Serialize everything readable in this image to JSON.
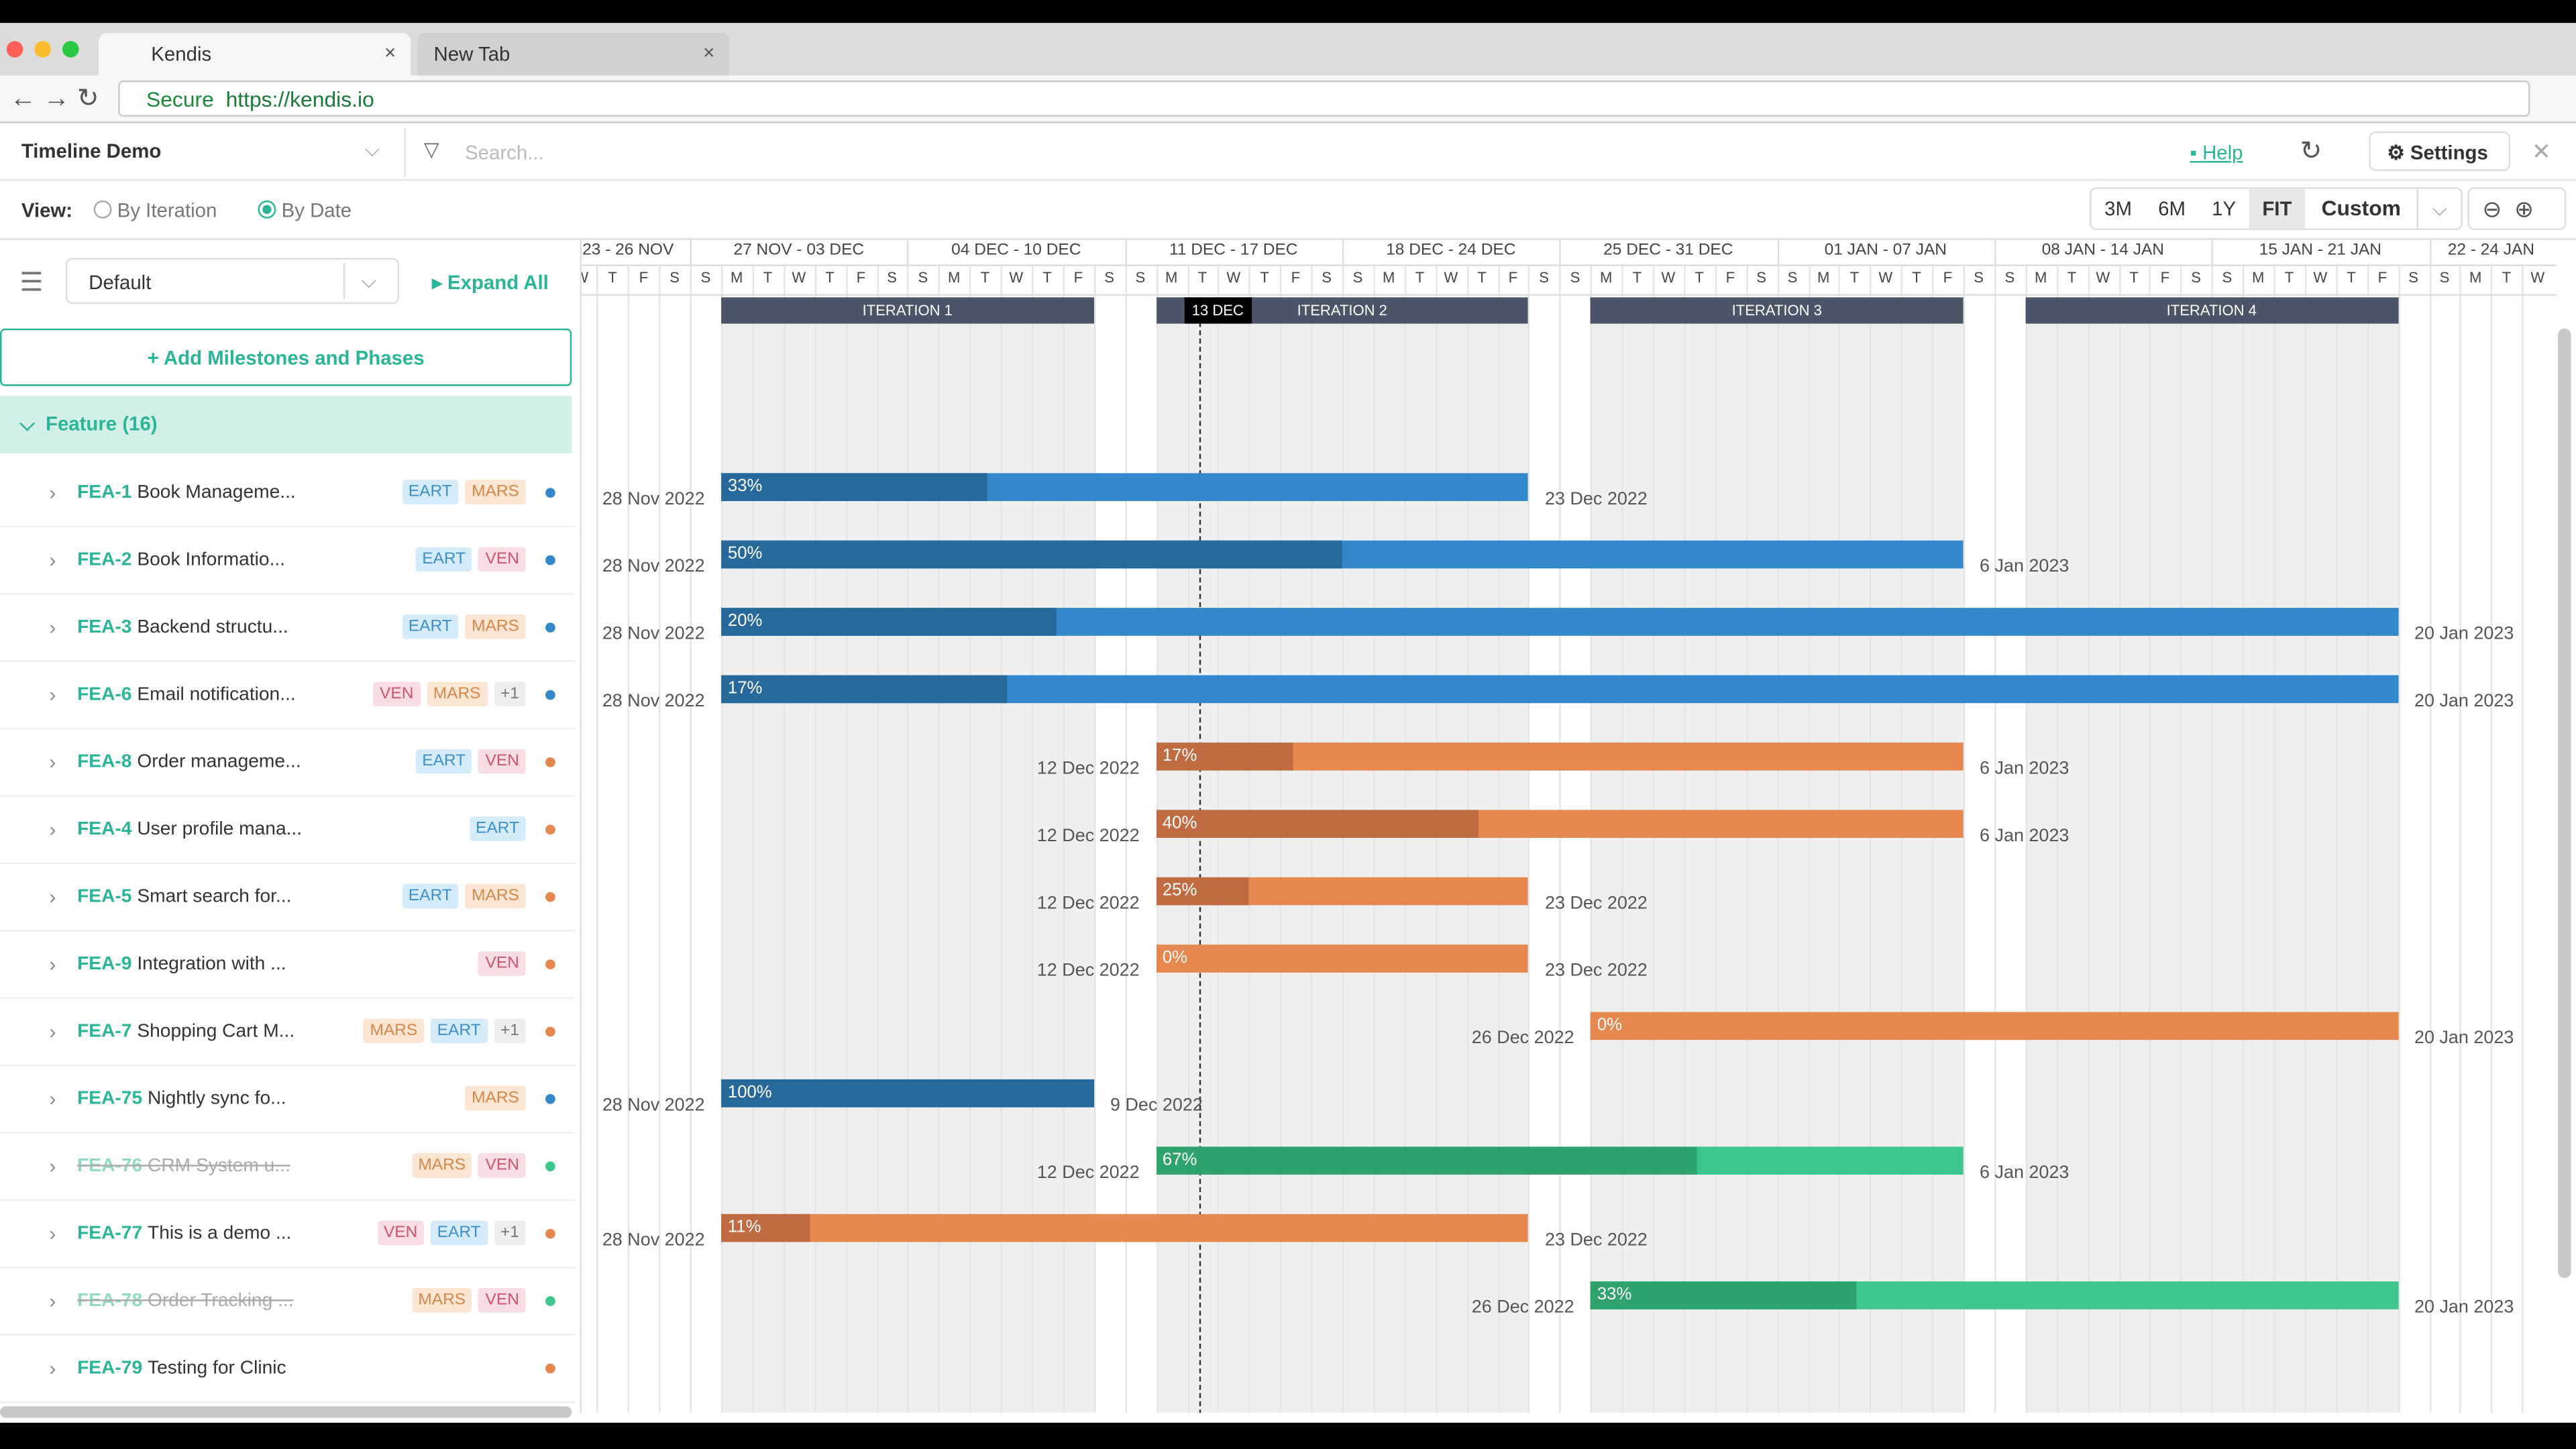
{
  "browser": {
    "tabs": [
      "Kendis",
      "New Tab"
    ],
    "secure": "Secure",
    "url": "https://kendis.io"
  },
  "header": {
    "board": "Timeline Demo",
    "search_placeholder": "Search...",
    "help": "Help",
    "settings": "Settings"
  },
  "view": {
    "label": "View:",
    "options": [
      "By Iteration",
      "By Date"
    ],
    "ranges": [
      "3M",
      "6M",
      "1Y",
      "FIT",
      "Custom"
    ]
  },
  "sidebar": {
    "preset": "Default",
    "expand": "Expand All",
    "add": "Add Milestones and Phases",
    "group": "Feature (16)"
  },
  "timeline": {
    "weeks": [
      "23 - 26 NOV",
      "27 NOV - 03 DEC",
      "04 DEC - 10 DEC",
      "11 DEC - 17 DEC",
      "18 DEC - 24 DEC",
      "25 DEC - 31 DEC",
      "01 JAN - 07 JAN",
      "08 JAN - 14 JAN",
      "15 JAN - 21 JAN",
      "22 - 24 JAN"
    ],
    "days": [
      "W",
      "T",
      "F",
      "S",
      "S",
      "M",
      "T",
      "W",
      "T",
      "F",
      "S",
      "S",
      "M",
      "T",
      "W",
      "T",
      "F",
      "S",
      "S",
      "M",
      "T",
      "W",
      "T",
      "F",
      "S",
      "S",
      "M",
      "T",
      "W",
      "T",
      "F",
      "S",
      "S",
      "M",
      "T",
      "W",
      "T",
      "F",
      "S",
      "S",
      "M",
      "T",
      "W",
      "T",
      "F",
      "S",
      "S",
      "M",
      "T",
      "W",
      "T",
      "F",
      "S",
      "S",
      "M",
      "T",
      "W",
      "T",
      "F",
      "S",
      "S",
      "M",
      "T",
      "W"
    ],
    "iterations": [
      "ITERATION 1",
      "ITERATION 2",
      "ITERATION 3",
      "ITERATION 4"
    ],
    "today": "13 DEC"
  },
  "rows": [
    {
      "id": "FEA-1",
      "name": "Book Manageme...",
      "tags": [
        "EART",
        "MARS"
      ],
      "start": "28 Nov 2022",
      "end": "23 Dec 2022",
      "progress": 33,
      "progress_label": "33%"
    },
    {
      "id": "FEA-2",
      "name": "Book Informatio...",
      "tags": [
        "EART",
        "VEN"
      ],
      "start": "28 Nov 2022",
      "end": "6 Jan 2023",
      "progress": 50,
      "progress_label": "50%"
    },
    {
      "id": "FEA-3",
      "name": "Backend structu...",
      "tags": [
        "EART",
        "MARS"
      ],
      "start": "28 Nov 2022",
      "end": "20 Jan 2023",
      "progress": 20,
      "progress_label": "20%"
    },
    {
      "id": "FEA-6",
      "name": "Email notification...",
      "tags": [
        "VEN",
        "MARS",
        "+1"
      ],
      "start": "28 Nov 2022",
      "end": "20 Jan 2023",
      "progress": 17,
      "progress_label": "17%"
    },
    {
      "id": "FEA-8",
      "name": "Order manageme...",
      "tags": [
        "EART",
        "VEN"
      ],
      "start": "12 Dec 2022",
      "end": "6 Jan 2023",
      "progress": 17,
      "progress_label": "17%"
    },
    {
      "id": "FEA-4",
      "name": "User profile mana...",
      "tags": [
        "EART"
      ],
      "start": "12 Dec 2022",
      "end": "6 Jan 2023",
      "progress": 40,
      "progress_label": "40%"
    },
    {
      "id": "FEA-5",
      "name": "Smart search for...",
      "tags": [
        "EART",
        "MARS"
      ],
      "start": "12 Dec 2022",
      "end": "23 Dec 2022",
      "progress": 25,
      "progress_label": "25%"
    },
    {
      "id": "FEA-9",
      "name": "Integration with ...",
      "tags": [
        "VEN"
      ],
      "start": "12 Dec 2022",
      "end": "23 Dec 2022",
      "progress": 0,
      "progress_label": "0%"
    },
    {
      "id": "FEA-7",
      "name": "Shopping Cart M...",
      "tags": [
        "MARS",
        "EART",
        "+1"
      ],
      "start": "26 Dec 2022",
      "end": "20 Jan 2023",
      "progress": 0,
      "progress_label": "0%"
    },
    {
      "id": "FEA-75",
      "name": "Nightly sync fo...",
      "tags": [
        "MARS"
      ],
      "start": "28 Nov 2022",
      "end": "9 Dec 2022",
      "progress": 100,
      "progress_label": "100%"
    },
    {
      "id": "FEA-76",
      "name": "CRM System u...",
      "tags": [
        "MARS",
        "VEN"
      ],
      "start": "12 Dec 2022",
      "end": "6 Jan 2023",
      "progress": 67,
      "progress_label": "67%"
    },
    {
      "id": "FEA-77",
      "name": "This is a demo ...",
      "tags": [
        "VEN",
        "EART",
        "+1"
      ],
      "start": "28 Nov 2022",
      "end": "23 Dec 2022",
      "progress": 11,
      "progress_label": "11%"
    },
    {
      "id": "FEA-78",
      "name": "Order Tracking ...",
      "tags": [
        "MARS",
        "VEN"
      ],
      "start": "26 Dec 2022",
      "end": "20 Jan 2023",
      "progress": 33,
      "progress_label": "33%"
    },
    {
      "id": "FEA-79",
      "name": "Testing for Clinic",
      "tags": []
    }
  ]
}
